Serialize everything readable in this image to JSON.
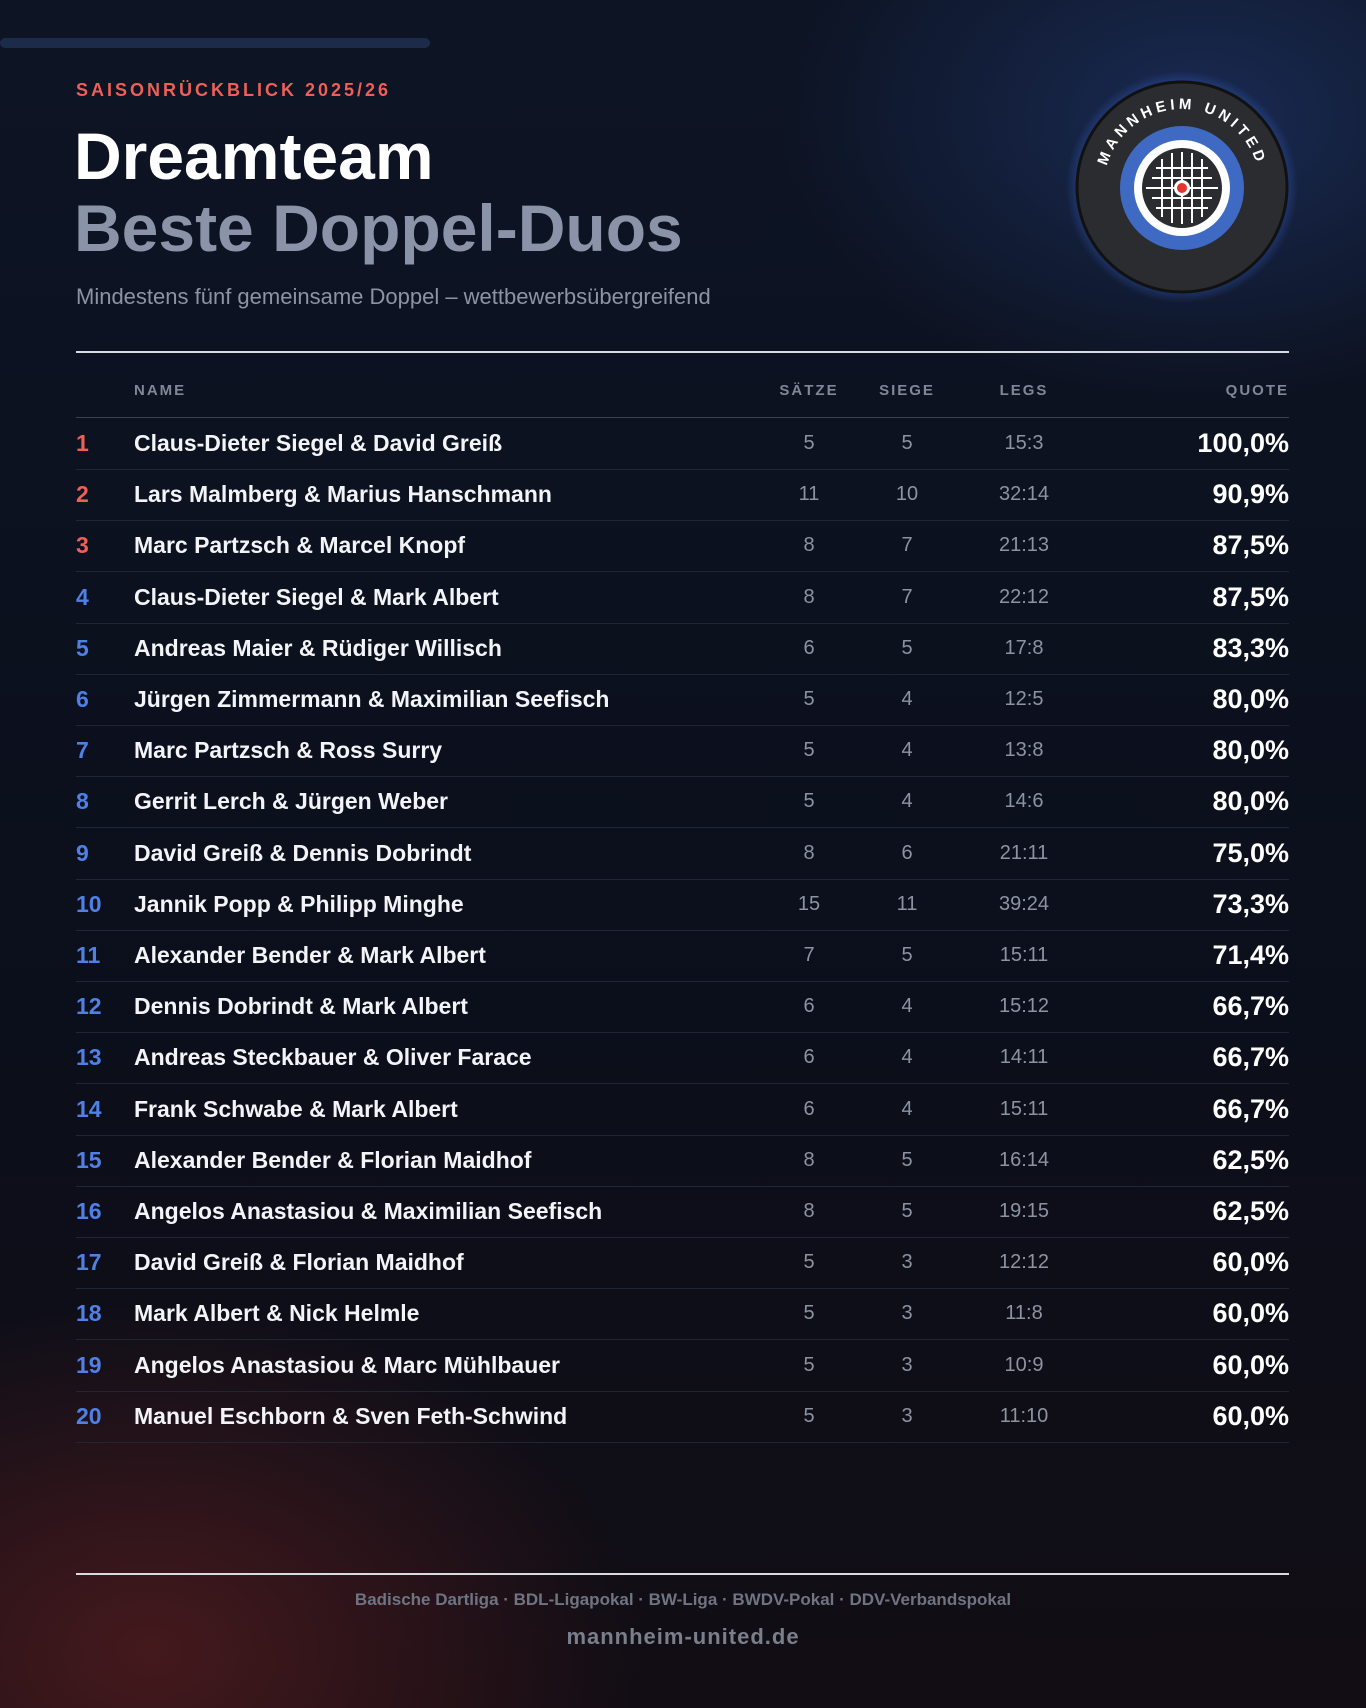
{
  "header": {
    "kicker": "SAISONRÜCKBLICK 2025/26",
    "title": "Dreamteam",
    "subtitle": "Beste Doppel-Duos",
    "description": "Mindestens fünf gemeinsame Doppel – wettbewerbsübergreifend",
    "logo_text": "MANNHEIM UNITED"
  },
  "table": {
    "columns": [
      "NAME",
      "SÄTZE",
      "SIEGE",
      "LEGS",
      "QUOTE"
    ],
    "rows": [
      [
        "1",
        "Claus-Dieter Siegel & David Greiß",
        "5",
        "5",
        "15:3",
        "100,0%"
      ],
      [
        "2",
        "Lars Malmberg & Marius Hanschmann",
        "11",
        "10",
        "32:14",
        "90,9%"
      ],
      [
        "3",
        "Marc Partzsch & Marcel Knopf",
        "8",
        "7",
        "21:13",
        "87,5%"
      ],
      [
        "4",
        "Claus-Dieter Siegel & Mark Albert",
        "8",
        "7",
        "22:12",
        "87,5%"
      ],
      [
        "5",
        "Andreas Maier & Rüdiger Willisch",
        "6",
        "5",
        "17:8",
        "83,3%"
      ],
      [
        "6",
        "Jürgen Zimmermann & Maximilian Seefisch",
        "5",
        "4",
        "12:5",
        "80,0%"
      ],
      [
        "7",
        "Marc Partzsch & Ross Surry",
        "5",
        "4",
        "13:8",
        "80,0%"
      ],
      [
        "8",
        "Gerrit Lerch & Jürgen Weber",
        "5",
        "4",
        "14:6",
        "80,0%"
      ],
      [
        "9",
        "David Greiß & Dennis Dobrindt",
        "8",
        "6",
        "21:11",
        "75,0%"
      ],
      [
        "10",
        "Jannik Popp & Philipp Minghe",
        "15",
        "11",
        "39:24",
        "73,3%"
      ],
      [
        "11",
        "Alexander Bender & Mark Albert",
        "7",
        "5",
        "15:11",
        "71,4%"
      ],
      [
        "12",
        "Dennis Dobrindt & Mark Albert",
        "6",
        "4",
        "15:12",
        "66,7%"
      ],
      [
        "13",
        "Andreas Steckbauer & Oliver Farace",
        "6",
        "4",
        "14:11",
        "66,7%"
      ],
      [
        "14",
        "Frank Schwabe & Mark Albert",
        "6",
        "4",
        "15:11",
        "66,7%"
      ],
      [
        "15",
        "Alexander Bender & Florian Maidhof",
        "8",
        "5",
        "16:14",
        "62,5%"
      ],
      [
        "16",
        "Angelos Anastasiou & Maximilian Seefisch",
        "8",
        "5",
        "19:15",
        "62,5%"
      ],
      [
        "17",
        "David Greiß & Florian Maidhof",
        "5",
        "3",
        "12:12",
        "60,0%"
      ],
      [
        "18",
        "Mark Albert & Nick Helmle",
        "5",
        "3",
        "11:8",
        "60,0%"
      ],
      [
        "19",
        "Angelos Anastasiou & Marc Mühlbauer",
        "5",
        "3",
        "10:9",
        "60,0%"
      ],
      [
        "20",
        "Manuel Eschborn & Sven Feth-Schwind",
        "5",
        "3",
        "11:10",
        "60,0%"
      ]
    ]
  },
  "footer": {
    "competitions": "Badische Dartliga · BDL-Ligapokal · BW-Liga · BWDV-Pokal · DDV-Verbandspokal",
    "url": "mannheim-united.de"
  }
}
